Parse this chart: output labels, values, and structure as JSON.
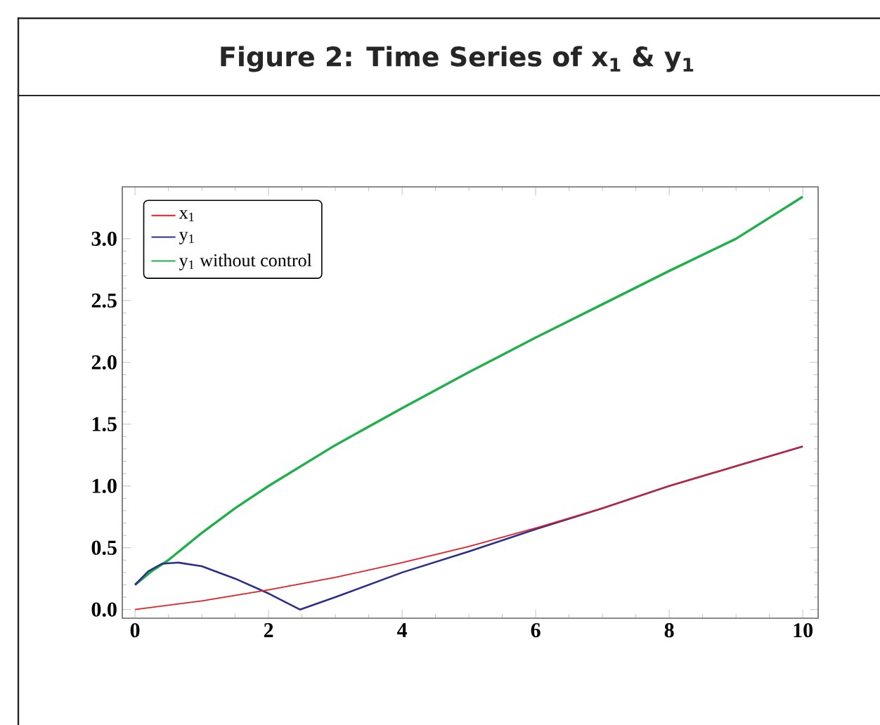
{
  "chart_data": {
    "type": "line",
    "title": "Figure 2: Time Series of x$_{1}$ & y$_{1}$",
    "series": [
      {
        "name": "x$_{1}$",
        "color": "#e41e26",
        "x": [
          0,
          1,
          2,
          3,
          4,
          5,
          6,
          7,
          8,
          9,
          10
        ],
        "values": [
          0,
          0.07,
          0.16,
          0.26,
          0.38,
          0.51,
          0.66,
          0.82,
          1.0,
          1.16,
          1.32
        ]
      },
      {
        "name": "y$_{1}$",
        "color": "#2b2e8c",
        "x": [
          0,
          0.2,
          0.4,
          0.65,
          1,
          1.5,
          2,
          2.47,
          3,
          4,
          5,
          6,
          7,
          8,
          9,
          10
        ],
        "values": [
          0.2,
          0.31,
          0.37,
          0.38,
          0.35,
          0.25,
          0.13,
          0,
          0.1,
          0.3,
          0.47,
          0.65,
          0.82,
          1.0,
          1.16,
          1.32
        ]
      },
      {
        "name": "y$_{1}$ without control",
        "color": "#1fb04a",
        "x": [
          0,
          0.25,
          0.5,
          1,
          1.5,
          2,
          3,
          4,
          5,
          6,
          7,
          8,
          9,
          10
        ],
        "values": [
          0.2,
          0.31,
          0.4,
          0.62,
          0.82,
          1.0,
          1.33,
          1.63,
          1.92,
          2.2,
          2.47,
          2.74,
          3.0,
          3.34
        ]
      }
    ],
    "xlim": [
      -0.19,
      10.23
    ],
    "ylim": [
      -0.07,
      3.42
    ],
    "xticks": [
      0,
      2,
      4,
      6,
      8,
      10
    ],
    "yticks": [
      {
        "value": 0,
        "label": "0.0"
      },
      {
        "value": 0.5,
        "label": "0.5"
      },
      {
        "value": 1,
        "label": "1.0"
      },
      {
        "value": 1.5,
        "label": "1.5"
      },
      {
        "value": 2,
        "label": "2.0"
      },
      {
        "value": 2.5,
        "label": "2.5"
      },
      {
        "value": 3,
        "label": "3.0"
      }
    ],
    "legend": "top left",
    "marker": "none",
    "line_style": "solid"
  }
}
